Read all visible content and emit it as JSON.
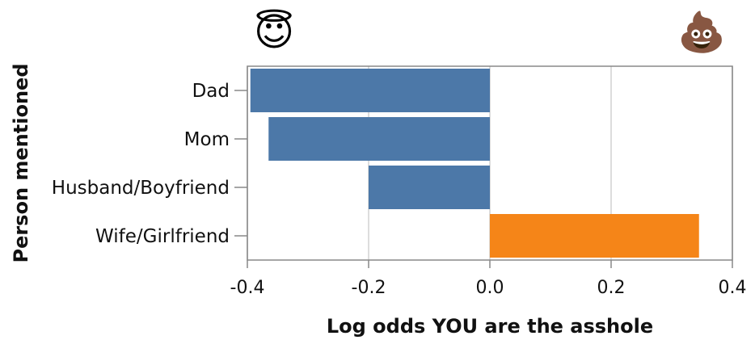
{
  "chart_data": {
    "type": "bar",
    "orientation": "horizontal",
    "categories": [
      "Dad",
      "Mom",
      "Husband/Boyfriend",
      "Wife/Girlfriend"
    ],
    "values": [
      -0.395,
      -0.365,
      -0.2,
      0.345
    ],
    "bar_colors": [
      "#4c78a8",
      "#4c78a8",
      "#4c78a8",
      "#f58518"
    ],
    "xlabel": "Log odds YOU are the asshole",
    "ylabel": "Person mentioned",
    "xlim": [
      -0.4,
      0.4
    ],
    "xticks": [
      -0.4,
      -0.2,
      0.0,
      0.2,
      0.4
    ],
    "xtick_labels": [
      "-0.4",
      "-0.2",
      "0.0",
      "0.2",
      "0.4"
    ],
    "grid": true,
    "annotations": {
      "left_emoji": "😇",
      "left_emoji_name": "angel-face-icon",
      "right_emoji": "💩",
      "right_emoji_name": "poop-icon"
    }
  }
}
